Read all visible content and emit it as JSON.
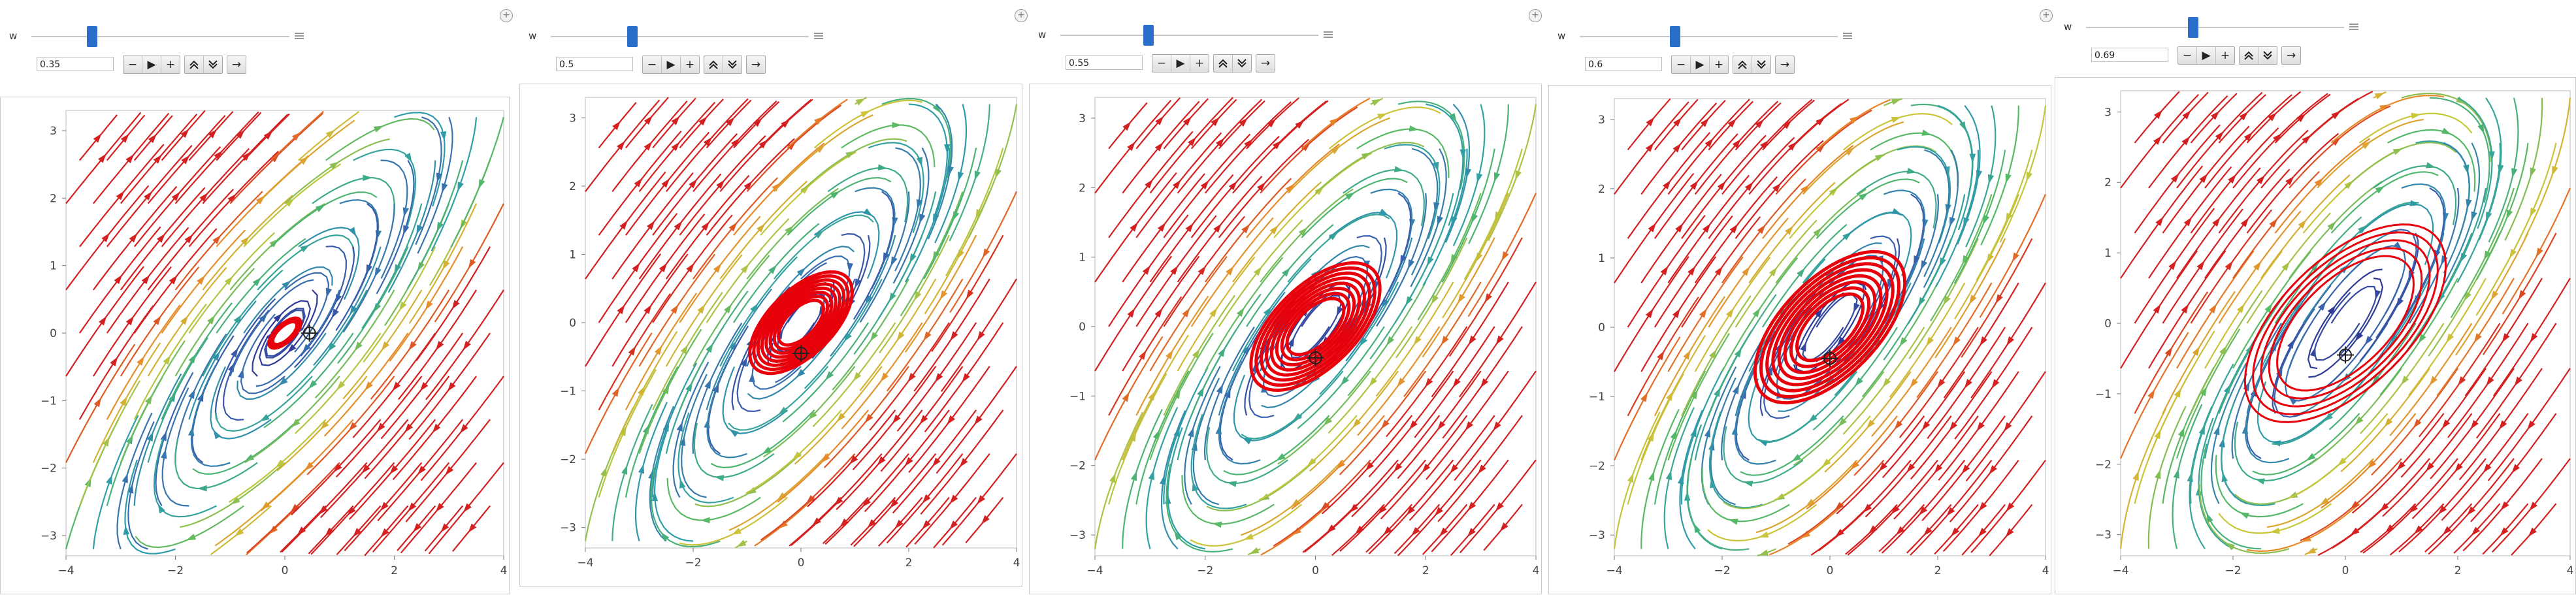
{
  "panels": [
    {
      "slider_label": "w",
      "value": "0.35",
      "w": 0.35
    },
    {
      "slider_label": "w",
      "value": "0.5",
      "w": 0.5
    },
    {
      "slider_label": "w",
      "value": "0.55",
      "w": 0.55
    },
    {
      "slider_label": "w",
      "value": "0.6",
      "w": 0.6
    },
    {
      "slider_label": "w",
      "value": "0.69",
      "w": 0.69
    }
  ],
  "slider_range": [
    0,
    1
  ],
  "buttons": {
    "minus": "−",
    "play": "▶",
    "plus": "+",
    "faster": "≈",
    "slower": "≈",
    "direction": "→"
  },
  "icons": {
    "add": "add-cell-icon",
    "menu": "slider-menu-icon",
    "plot": "stream-plot"
  },
  "chart_data": {
    "type": "streamplot",
    "x_ticks": [
      "−4",
      "−2",
      "0",
      "2",
      "4"
    ],
    "y_ticks": [
      "−3",
      "−2",
      "−1",
      "0",
      "1",
      "2",
      "3"
    ],
    "xlim": [
      -4,
      4
    ],
    "ylim": [
      -3.3,
      3.3
    ],
    "orbit_color": "#e8000b",
    "colormap": [
      "#2c2a8c",
      "#3a64b0",
      "#2f9fa8",
      "#52b868",
      "#c9c73a",
      "#e88a2a",
      "#d42020"
    ]
  }
}
